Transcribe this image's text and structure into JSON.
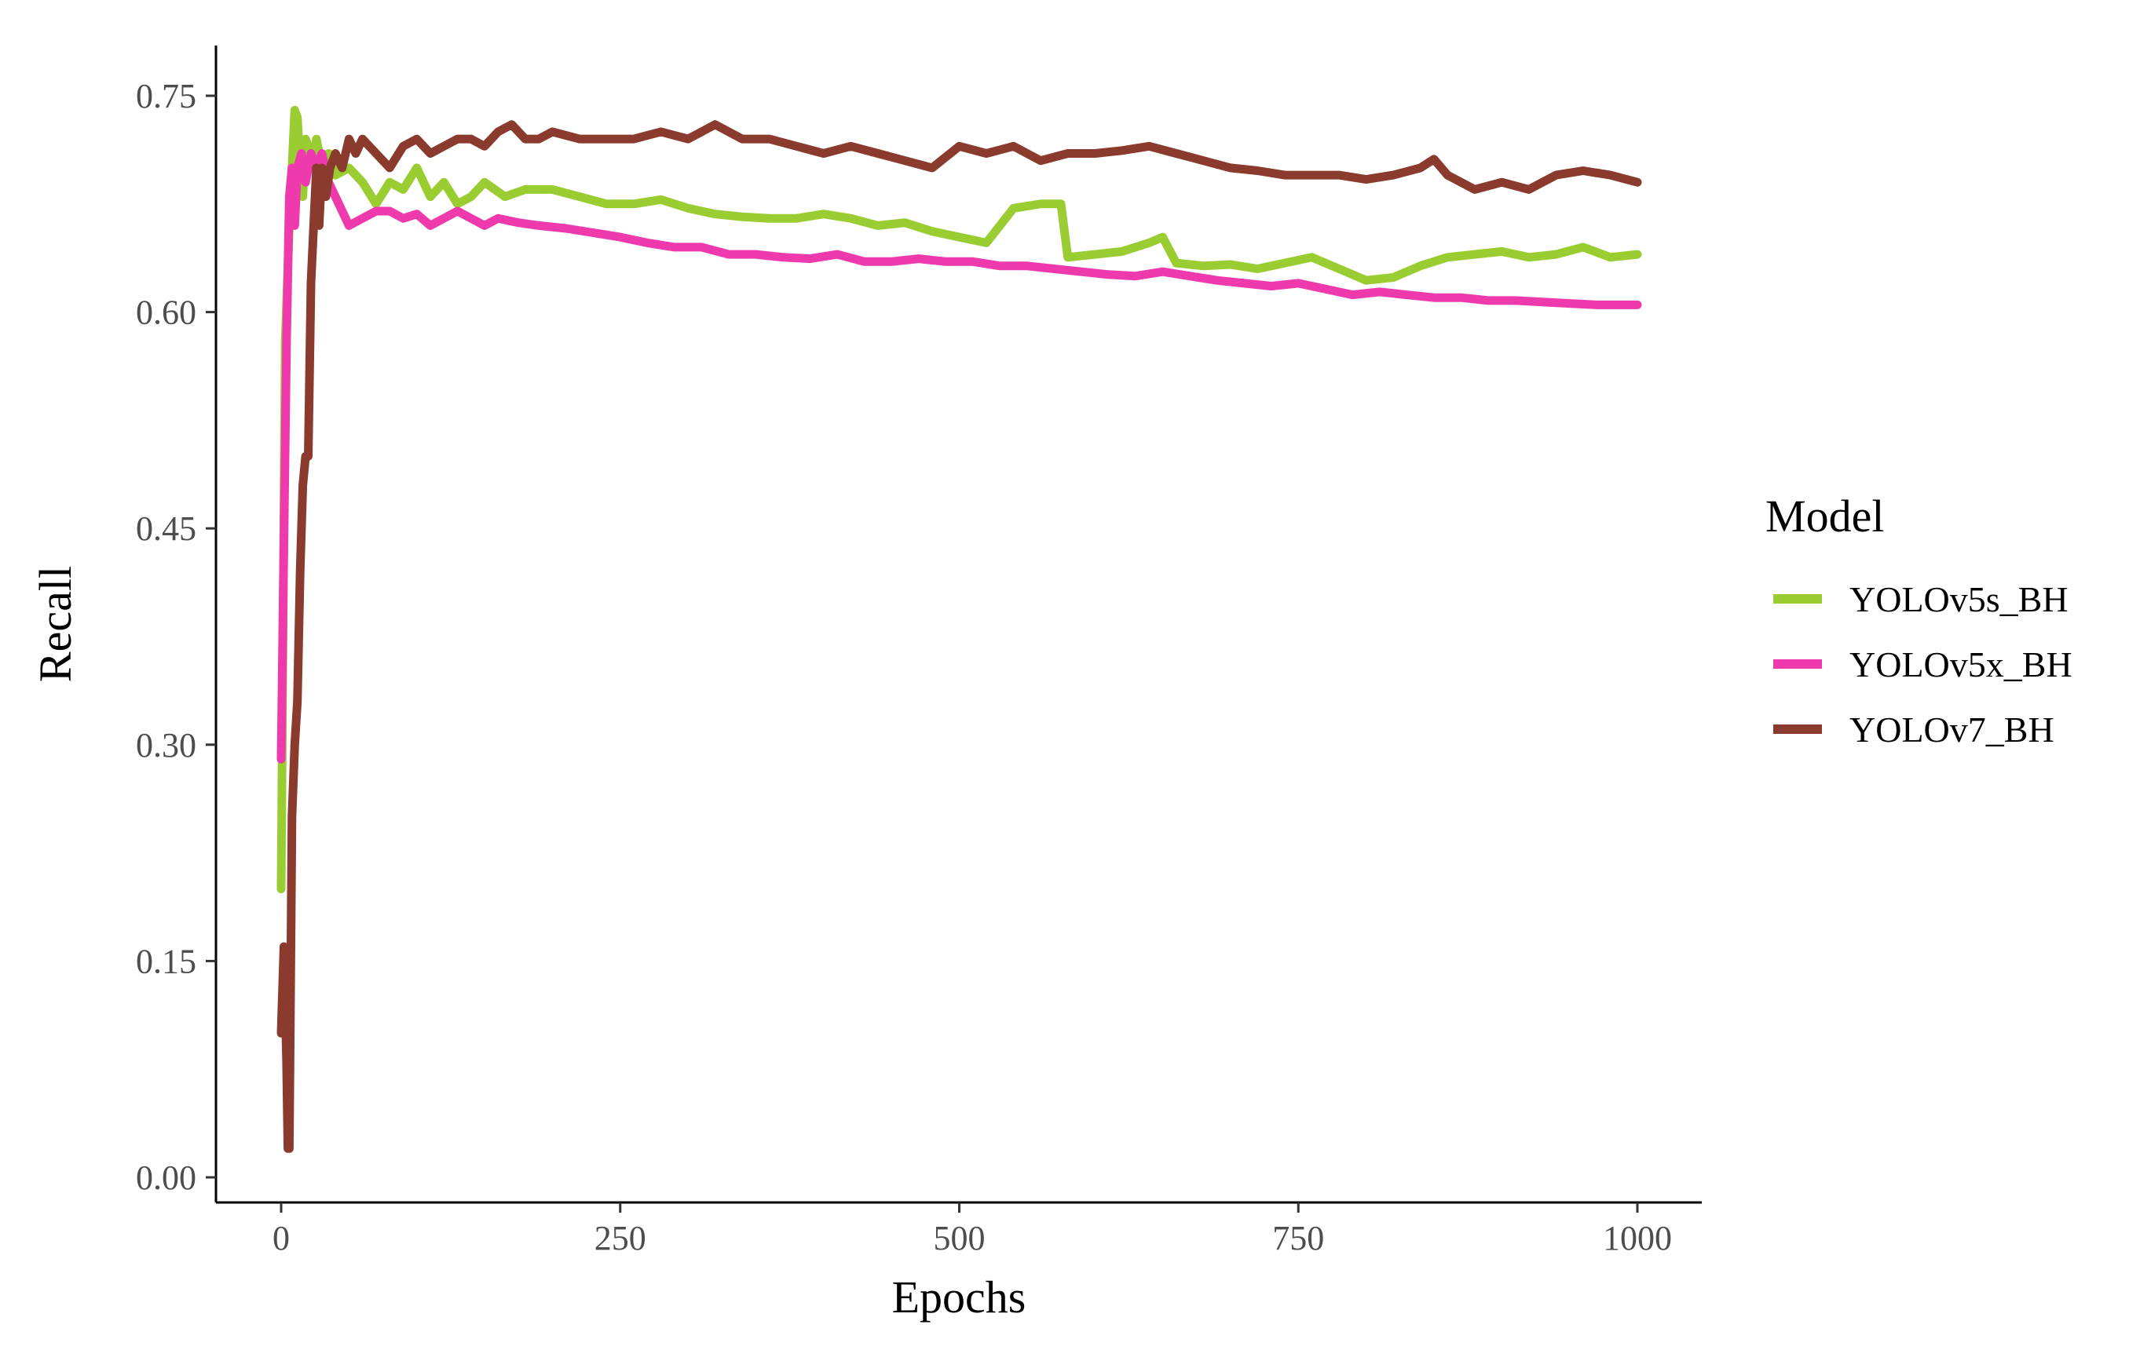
{
  "chart_data": {
    "type": "line",
    "title": "",
    "xlabel": "Epochs",
    "ylabel": "Recall",
    "xlim": [
      0,
      1000
    ],
    "ylim": [
      0,
      0.75
    ],
    "xticks": [
      0,
      250,
      500,
      750,
      1000
    ],
    "xtick_labels": [
      "0",
      "250",
      "500",
      "750",
      "1000"
    ],
    "yticks": [
      0,
      0.15,
      0.3,
      0.45,
      0.6,
      0.75
    ],
    "ytick_labels": [
      "0.00",
      "0.15",
      "0.30",
      "0.45",
      "0.60",
      "0.75"
    ],
    "grid": false,
    "legend": {
      "title": "Model",
      "placement": "right"
    },
    "series": [
      {
        "name": "YOLOv5s_BH",
        "color": "#9acd32",
        "x": [
          0,
          3,
          6,
          8,
          10,
          12,
          14,
          16,
          18,
          20,
          23,
          26,
          30,
          35,
          40,
          50,
          60,
          70,
          80,
          90,
          100,
          110,
          120,
          130,
          140,
          150,
          165,
          180,
          200,
          220,
          240,
          260,
          280,
          300,
          320,
          340,
          360,
          380,
          400,
          420,
          440,
          460,
          480,
          500,
          520,
          540,
          560,
          575,
          580,
          600,
          620,
          640,
          650,
          660,
          680,
          700,
          720,
          740,
          760,
          780,
          800,
          820,
          840,
          860,
          880,
          900,
          920,
          940,
          960,
          980,
          1000
        ],
        "y": [
          0.2,
          0.58,
          0.66,
          0.7,
          0.74,
          0.735,
          0.7,
          0.68,
          0.72,
          0.715,
          0.7,
          0.72,
          0.7,
          0.71,
          0.695,
          0.7,
          0.69,
          0.675,
          0.69,
          0.685,
          0.7,
          0.68,
          0.69,
          0.675,
          0.68,
          0.69,
          0.68,
          0.685,
          0.685,
          0.68,
          0.675,
          0.675,
          0.678,
          0.672,
          0.668,
          0.666,
          0.665,
          0.665,
          0.668,
          0.665,
          0.66,
          0.662,
          0.656,
          0.652,
          0.648,
          0.672,
          0.675,
          0.675,
          0.638,
          0.64,
          0.642,
          0.648,
          0.652,
          0.634,
          0.632,
          0.633,
          0.63,
          0.634,
          0.638,
          0.63,
          0.622,
          0.624,
          0.632,
          0.638,
          0.64,
          0.642,
          0.638,
          0.64,
          0.645,
          0.638,
          0.64
        ]
      },
      {
        "name": "YOLOv5x_BH",
        "color": "#ee3aad",
        "x": [
          0,
          2,
          4,
          6,
          8,
          10,
          12,
          15,
          18,
          22,
          26,
          30,
          35,
          40,
          50,
          60,
          70,
          80,
          90,
          100,
          110,
          120,
          130,
          140,
          150,
          160,
          175,
          190,
          210,
          230,
          250,
          270,
          290,
          310,
          330,
          350,
          370,
          390,
          410,
          430,
          450,
          470,
          490,
          510,
          530,
          550,
          570,
          590,
          610,
          630,
          650,
          670,
          690,
          710,
          730,
          750,
          770,
          790,
          810,
          830,
          850,
          870,
          890,
          910,
          930,
          950,
          970,
          990,
          1000
        ],
        "y": [
          0.29,
          0.44,
          0.58,
          0.68,
          0.7,
          0.66,
          0.7,
          0.71,
          0.69,
          0.71,
          0.7,
          0.71,
          0.69,
          0.68,
          0.66,
          0.665,
          0.67,
          0.67,
          0.665,
          0.668,
          0.66,
          0.665,
          0.67,
          0.665,
          0.66,
          0.665,
          0.662,
          0.66,
          0.658,
          0.655,
          0.652,
          0.648,
          0.645,
          0.645,
          0.64,
          0.64,
          0.638,
          0.637,
          0.64,
          0.635,
          0.635,
          0.637,
          0.635,
          0.635,
          0.632,
          0.632,
          0.63,
          0.628,
          0.626,
          0.625,
          0.628,
          0.625,
          0.622,
          0.62,
          0.618,
          0.62,
          0.616,
          0.612,
          0.614,
          0.612,
          0.61,
          0.61,
          0.608,
          0.608,
          0.607,
          0.606,
          0.605,
          0.605,
          0.605
        ]
      },
      {
        "name": "YOLOv7_BH",
        "color": "#8b3a2e",
        "x": [
          0,
          2,
          4,
          5,
          6,
          8,
          10,
          12,
          14,
          16,
          18,
          20,
          22,
          24,
          26,
          28,
          30,
          33,
          36,
          40,
          45,
          50,
          55,
          60,
          70,
          80,
          90,
          100,
          110,
          120,
          130,
          140,
          150,
          160,
          170,
          180,
          190,
          200,
          220,
          240,
          260,
          280,
          300,
          320,
          340,
          360,
          380,
          400,
          420,
          440,
          460,
          480,
          500,
          520,
          540,
          560,
          580,
          600,
          620,
          640,
          660,
          680,
          700,
          720,
          740,
          760,
          780,
          800,
          820,
          840,
          850,
          860,
          880,
          900,
          920,
          940,
          960,
          980,
          1000
        ],
        "y": [
          0.1,
          0.16,
          0.08,
          0.02,
          0.02,
          0.25,
          0.3,
          0.33,
          0.42,
          0.48,
          0.5,
          0.5,
          0.62,
          0.66,
          0.7,
          0.66,
          0.7,
          0.68,
          0.7,
          0.71,
          0.7,
          0.72,
          0.71,
          0.72,
          0.71,
          0.7,
          0.715,
          0.72,
          0.71,
          0.715,
          0.72,
          0.72,
          0.715,
          0.725,
          0.73,
          0.72,
          0.72,
          0.725,
          0.72,
          0.72,
          0.72,
          0.725,
          0.72,
          0.73,
          0.72,
          0.72,
          0.715,
          0.71,
          0.715,
          0.71,
          0.705,
          0.7,
          0.715,
          0.71,
          0.715,
          0.705,
          0.71,
          0.71,
          0.712,
          0.715,
          0.71,
          0.705,
          0.7,
          0.698,
          0.695,
          0.695,
          0.695,
          0.692,
          0.695,
          0.7,
          0.706,
          0.695,
          0.685,
          0.69,
          0.685,
          0.695,
          0.698,
          0.695,
          0.69
        ]
      }
    ]
  }
}
